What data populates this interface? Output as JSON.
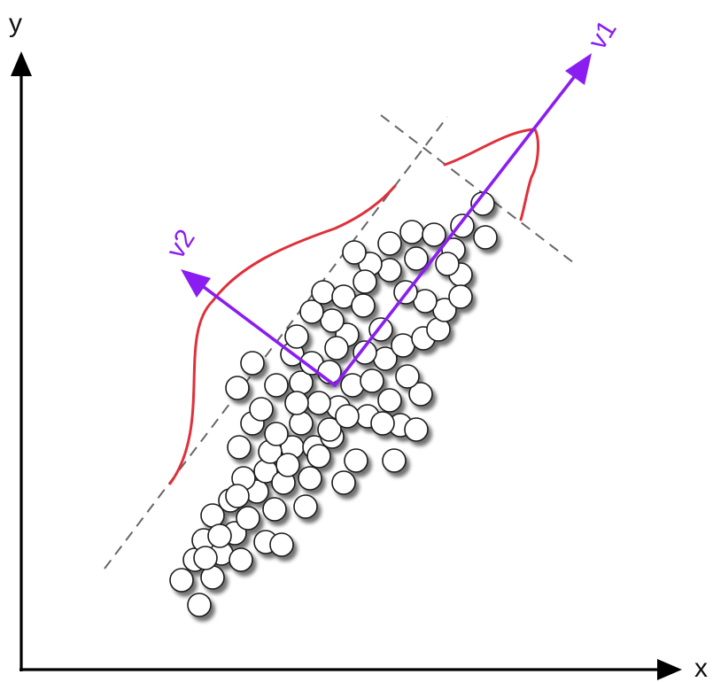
{
  "axes": {
    "x_label": "x",
    "y_label": "y"
  },
  "vectors": {
    "v1_label": "v1",
    "v2_label": "v2"
  },
  "colors": {
    "vector": "#8a1ef2",
    "distribution_curve": "#e0303a",
    "guide_line": "#666666",
    "axis": "#000000"
  }
}
